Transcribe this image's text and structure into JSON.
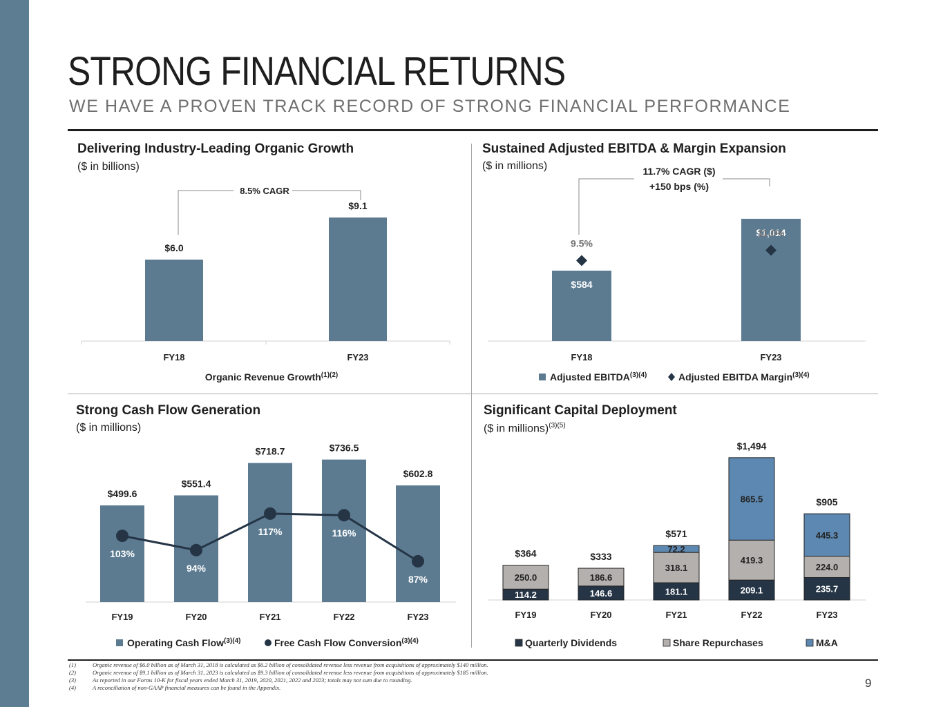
{
  "title": "STRONG FINANCIAL RETURNS",
  "subtitle": "WE HAVE A PROVEN TRACK RECORD OF STRONG FINANCIAL PERFORMANCE",
  "page_number": "9",
  "colors": {
    "sidebar": "#5d7d93",
    "bar": "#5c7b91",
    "ma": "#5d88b1",
    "repurchase": "#b4b0ad",
    "dark": "#253546"
  },
  "panels": {
    "organic": {
      "title": "Delivering Industry-Leading Organic Growth",
      "subtitle": "($ in billions)",
      "cagr": "8.5% CAGR",
      "legend": "Organic Revenue Growth",
      "legend_sup": "(1)(2)"
    },
    "ebitda": {
      "title": "Sustained Adjusted EBITDA & Margin Expansion",
      "subtitle": "($ in millions)",
      "cagr_line1": "11.7% CAGR ($)",
      "cagr_line2": "+150 bps (%)",
      "legend_bar": "Adjusted EBITDA",
      "legend_bar_sup": "(3)(4)",
      "legend_marker": "Adjusted EBITDA Margin",
      "legend_marker_sup": "(3)(4)"
    },
    "cash": {
      "title": "Strong Cash Flow Generation",
      "subtitle": "($ in millions)",
      "legend_bar": "Operating Cash Flow",
      "legend_bar_sup": "(3)(4)",
      "legend_line": "Free Cash Flow Conversion",
      "legend_line_sup": "(3)(4)"
    },
    "capital": {
      "title": "Significant Capital Deployment",
      "subtitle": "($ in millions)",
      "subtitle_sup": "(3)(5)",
      "legend": [
        "Quarterly Dividends",
        "Share Repurchases",
        "M&A"
      ]
    }
  },
  "chart_data": [
    {
      "type": "bar",
      "title": "Delivering Industry-Leading Organic Growth",
      "categories": [
        "FY18",
        "FY23"
      ],
      "values": [
        6.0,
        9.1
      ],
      "labels": [
        "$6.0",
        "$9.1"
      ],
      "ylim": [
        0,
        10
      ],
      "ylabel": "($ in billions)"
    },
    {
      "type": "bar",
      "title": "Sustained Adjusted EBITDA & Margin Expansion",
      "categories": [
        "FY18",
        "FY23"
      ],
      "series": [
        {
          "name": "Adjusted EBITDA",
          "values": [
            584,
            1014
          ],
          "labels": [
            "$584",
            "$1,014"
          ]
        },
        {
          "name": "Adjusted EBITDA Margin",
          "values": [
            9.5,
            11.0
          ],
          "labels": [
            "9.5%",
            "11.0%"
          ]
        }
      ],
      "ylim": [
        0,
        1100
      ]
    },
    {
      "type": "bar",
      "title": "Strong Cash Flow Generation",
      "categories": [
        "FY19",
        "FY20",
        "FY21",
        "FY22",
        "FY23"
      ],
      "series": [
        {
          "name": "Operating Cash Flow",
          "values": [
            499.6,
            551.4,
            718.7,
            736.5,
            602.8
          ],
          "labels": [
            "$499.6",
            "$551.4",
            "$718.7",
            "$736.5",
            "$602.8"
          ]
        },
        {
          "name": "Free Cash Flow Conversion",
          "values": [
            103,
            94,
            117,
            116,
            87
          ],
          "labels": [
            "103%",
            "94%",
            "117%",
            "116%",
            "87%"
          ]
        }
      ],
      "ylim": [
        0,
        800
      ]
    },
    {
      "type": "bar",
      "stacked": true,
      "title": "Significant Capital Deployment",
      "categories": [
        "FY19",
        "FY20",
        "FY21",
        "FY22",
        "FY23"
      ],
      "series": [
        {
          "name": "Quarterly Dividends",
          "values": [
            114.2,
            146.6,
            181.1,
            209.1,
            235.7
          ],
          "labels": [
            "114.2",
            "146.6",
            "181.1",
            "209.1",
            "235.7"
          ]
        },
        {
          "name": "Share Repurchases",
          "values": [
            250.0,
            186.6,
            318.1,
            419.3,
            224.0
          ],
          "labels": [
            "250.0",
            "186.6",
            "318.1",
            "419.3",
            "224.0"
          ]
        },
        {
          "name": "M&A",
          "values": [
            0,
            0,
            72.2,
            865.5,
            445.3
          ],
          "labels": [
            "",
            "",
            "72.2",
            "865.5",
            "445.3"
          ]
        }
      ],
      "totals": [
        "$364",
        "$333",
        "$571",
        "$1,494",
        "$905"
      ],
      "ylim": [
        0,
        1600
      ]
    }
  ],
  "footnotes": [
    {
      "num": "(1)",
      "text": "Organic revenue of $6.0 billion as of March 31, 2018 is calculated as $6.2 billion of consolidated revenue less revenue from acquisitions of approximately $140 million."
    },
    {
      "num": "(2)",
      "text": "Organic revenue of $9.1 billion as of March 31, 2023 is calculated as $9.3 billion of consolidated revenue less revenue from acquisitions of approximately $185 million."
    },
    {
      "num": "(3)",
      "text": "As reported in our Forms 10-K for fiscal years ended March 31, 2019, 2020, 2021, 2022 and 2023; totals may not sum due to rounding."
    },
    {
      "num": "(4)",
      "text": "A reconciliation of non-GAAP financial measures can be found in the Appendix."
    }
  ]
}
